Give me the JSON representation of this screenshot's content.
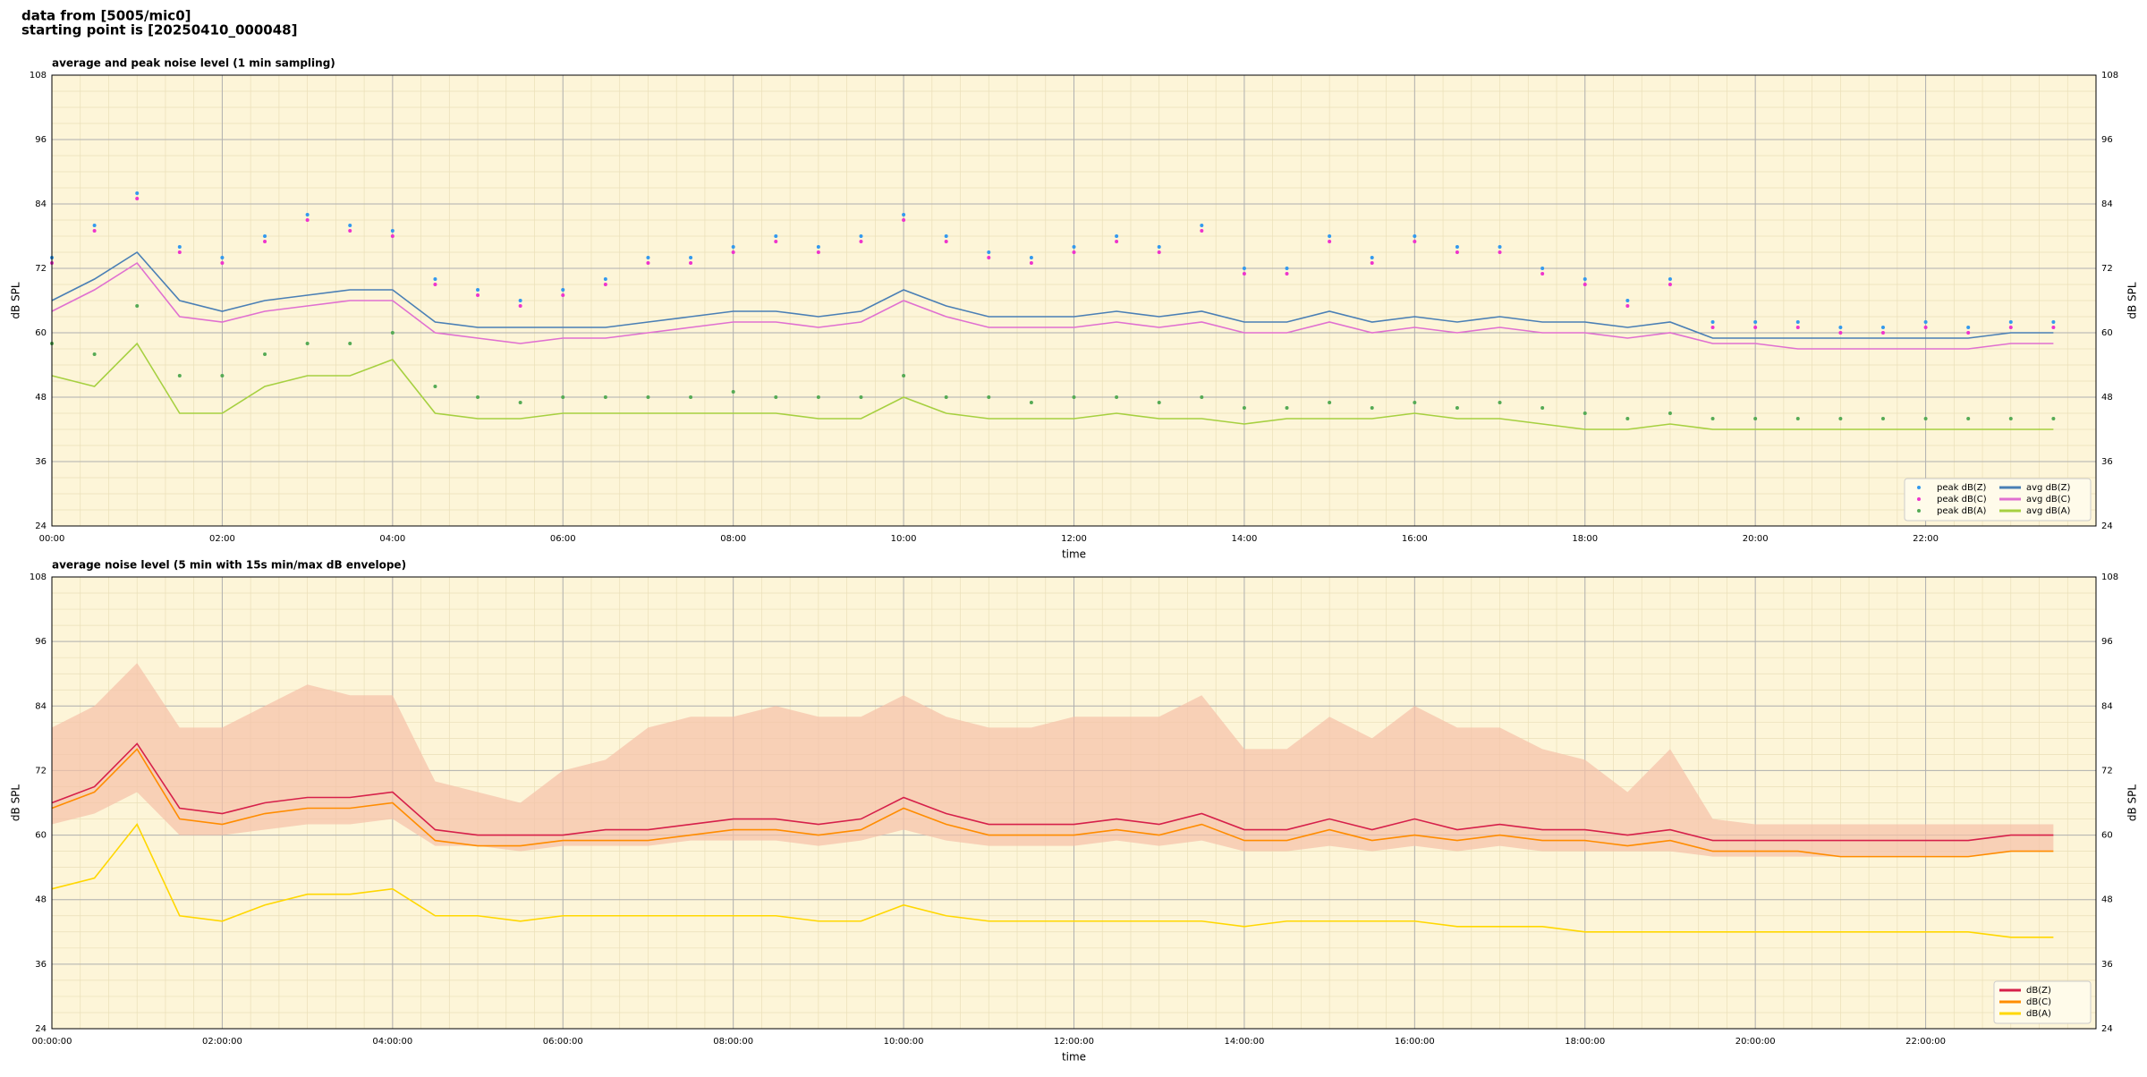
{
  "header": {
    "line1": "data from [5005/mic0]",
    "line2": "starting point is [20250410_000048]"
  },
  "chart_data": [
    {
      "type": "line",
      "title": "average and peak noise level (1 min sampling)",
      "x_label": "time",
      "y_label": "dB SPL",
      "xlim": [
        0,
        24
      ],
      "ylim": [
        24,
        108
      ],
      "grid": true,
      "legend": "lower right",
      "legend_columns": 2,
      "xticks": [
        {
          "value": 0,
          "label": "00:00"
        },
        {
          "value": 2,
          "label": "02:00"
        },
        {
          "value": 4,
          "label": "04:00"
        },
        {
          "value": 6,
          "label": "06:00"
        },
        {
          "value": 8,
          "label": "08:00"
        },
        {
          "value": 10,
          "label": "10:00"
        },
        {
          "value": 12,
          "label": "12:00"
        },
        {
          "value": 14,
          "label": "14:00"
        },
        {
          "value": 16,
          "label": "16:00"
        },
        {
          "value": 18,
          "label": "18:00"
        },
        {
          "value": 20,
          "label": "20:00"
        },
        {
          "value": 22,
          "label": "22:00"
        }
      ],
      "yticks": [
        24,
        36,
        48,
        60,
        72,
        84,
        96,
        108
      ],
      "x": [
        0,
        0.5,
        1,
        1.5,
        2,
        2.5,
        3,
        3.5,
        4,
        4.5,
        5,
        5.5,
        6,
        6.5,
        7,
        7.5,
        8,
        8.5,
        9,
        9.5,
        10,
        10.5,
        11,
        11.5,
        12,
        12.5,
        13,
        13.5,
        14,
        14.5,
        15,
        15.5,
        16,
        16.5,
        17,
        17.5,
        18,
        18.5,
        19,
        19.5,
        20,
        20.5,
        21,
        21.5,
        22,
        22.5,
        23,
        23.5
      ],
      "series": [
        {
          "name": "peak dB(Z)",
          "style": "points",
          "color": "#3399ee",
          "values": [
            74,
            80,
            86,
            76,
            74,
            78,
            82,
            80,
            79,
            70,
            68,
            66,
            68,
            70,
            74,
            74,
            76,
            78,
            76,
            78,
            82,
            78,
            75,
            74,
            76,
            78,
            76,
            80,
            72,
            72,
            78,
            74,
            78,
            76,
            76,
            72,
            70,
            66,
            70,
            62,
            62,
            62,
            61,
            61,
            62,
            61,
            62,
            62
          ]
        },
        {
          "name": "peak dB(C)",
          "style": "points",
          "color": "#ee33cc",
          "values": [
            73,
            79,
            85,
            75,
            73,
            77,
            81,
            79,
            78,
            69,
            67,
            65,
            67,
            69,
            73,
            73,
            75,
            77,
            75,
            77,
            81,
            77,
            74,
            73,
            75,
            77,
            75,
            79,
            71,
            71,
            77,
            73,
            77,
            75,
            75,
            71,
            69,
            65,
            69,
            61,
            61,
            61,
            60,
            60,
            61,
            60,
            61,
            61
          ]
        },
        {
          "name": "peak dB(A)",
          "style": "points",
          "color": "#55aa55",
          "values": [
            58,
            56,
            65,
            52,
            52,
            56,
            58,
            58,
            60,
            50,
            48,
            47,
            48,
            48,
            48,
            48,
            49,
            48,
            48,
            48,
            52,
            48,
            48,
            47,
            48,
            48,
            47,
            48,
            46,
            46,
            47,
            46,
            47,
            46,
            47,
            46,
            45,
            44,
            45,
            44,
            44,
            44,
            44,
            44,
            44,
            44,
            44,
            44
          ]
        },
        {
          "name": "avg dB(Z)",
          "style": "line",
          "color": "#4a7fb5",
          "values": [
            66,
            70,
            75,
            66,
            64,
            66,
            67,
            68,
            68,
            62,
            61,
            61,
            61,
            61,
            62,
            63,
            64,
            64,
            63,
            64,
            68,
            65,
            63,
            63,
            63,
            64,
            63,
            64,
            62,
            62,
            64,
            62,
            63,
            62,
            63,
            62,
            62,
            61,
            62,
            59,
            59,
            59,
            59,
            59,
            59,
            59,
            60,
            60
          ]
        },
        {
          "name": "avg dB(C)",
          "style": "line",
          "color": "#e070d0",
          "values": [
            64,
            68,
            73,
            63,
            62,
            64,
            65,
            66,
            66,
            60,
            59,
            58,
            59,
            59,
            60,
            61,
            62,
            62,
            61,
            62,
            66,
            63,
            61,
            61,
            61,
            62,
            61,
            62,
            60,
            60,
            62,
            60,
            61,
            60,
            61,
            60,
            60,
            59,
            60,
            58,
            58,
            57,
            57,
            57,
            57,
            57,
            58,
            58
          ]
        },
        {
          "name": "avg dB(A)",
          "style": "line",
          "color": "#a6d040",
          "values": [
            52,
            50,
            58,
            45,
            45,
            50,
            52,
            52,
            55,
            45,
            44,
            44,
            45,
            45,
            45,
            45,
            45,
            45,
            44,
            44,
            48,
            45,
            44,
            44,
            44,
            45,
            44,
            44,
            43,
            44,
            44,
            44,
            45,
            44,
            44,
            43,
            42,
            42,
            43,
            42,
            42,
            42,
            42,
            42,
            42,
            42,
            42,
            42
          ]
        }
      ]
    },
    {
      "type": "line",
      "title": "average noise level (5 min with 15s min/max dB envelope)",
      "x_label": "time",
      "y_label": "dB SPL",
      "xlim": [
        0,
        24
      ],
      "ylim": [
        24,
        108
      ],
      "grid": true,
      "legend": "lower right",
      "legend_columns": 1,
      "xticks": [
        {
          "value": 0,
          "label": "00:00:00"
        },
        {
          "value": 2,
          "label": "02:00:00"
        },
        {
          "value": 4,
          "label": "04:00:00"
        },
        {
          "value": 6,
          "label": "06:00:00"
        },
        {
          "value": 8,
          "label": "08:00:00"
        },
        {
          "value": 10,
          "label": "10:00:00"
        },
        {
          "value": 12,
          "label": "12:00:00"
        },
        {
          "value": 14,
          "label": "14:00:00"
        },
        {
          "value": 16,
          "label": "16:00:00"
        },
        {
          "value": 18,
          "label": "18:00:00"
        },
        {
          "value": 20,
          "label": "20:00:00"
        },
        {
          "value": 22,
          "label": "22:00:00"
        }
      ],
      "yticks": [
        24,
        36,
        48,
        60,
        72,
        84,
        96,
        108
      ],
      "x": [
        0,
        0.5,
        1,
        1.5,
        2,
        2.5,
        3,
        3.5,
        4,
        4.5,
        5,
        5.5,
        6,
        6.5,
        7,
        7.5,
        8,
        8.5,
        9,
        9.5,
        10,
        10.5,
        11,
        11.5,
        12,
        12.5,
        13,
        13.5,
        14,
        14.5,
        15,
        15.5,
        16,
        16.5,
        17,
        17.5,
        18,
        18.5,
        19,
        19.5,
        20,
        20.5,
        21,
        21.5,
        22,
        22.5,
        23,
        23.5
      ],
      "band": {
        "color": "#f5c0a8",
        "lower": [
          62,
          64,
          68,
          60,
          60,
          61,
          62,
          62,
          63,
          58,
          58,
          57,
          58,
          58,
          58,
          59,
          59,
          59,
          58,
          59,
          61,
          59,
          58,
          58,
          58,
          59,
          58,
          59,
          57,
          57,
          58,
          57,
          58,
          57,
          58,
          57,
          57,
          57,
          57,
          56,
          56,
          56,
          56,
          56,
          56,
          56,
          57,
          57
        ],
        "upper": [
          80,
          84,
          92,
          80,
          80,
          84,
          88,
          86,
          86,
          70,
          68,
          66,
          72,
          74,
          80,
          82,
          82,
          84,
          82,
          82,
          86,
          82,
          80,
          80,
          82,
          82,
          82,
          86,
          76,
          76,
          82,
          78,
          84,
          80,
          80,
          76,
          74,
          68,
          76,
          63,
          62,
          62,
          62,
          62,
          62,
          62,
          62,
          62
        ]
      },
      "series": [
        {
          "name": "dB(Z)",
          "style": "line",
          "color": "#d6204a",
          "values": [
            66,
            69,
            77,
            65,
            64,
            66,
            67,
            67,
            68,
            61,
            60,
            60,
            60,
            61,
            61,
            62,
            63,
            63,
            62,
            63,
            67,
            64,
            62,
            62,
            62,
            63,
            62,
            64,
            61,
            61,
            63,
            61,
            63,
            61,
            62,
            61,
            61,
            60,
            61,
            59,
            59,
            59,
            59,
            59,
            59,
            59,
            60,
            60
          ]
        },
        {
          "name": "dB(C)",
          "style": "line",
          "color": "#ff8c00",
          "values": [
            65,
            68,
            76,
            63,
            62,
            64,
            65,
            65,
            66,
            59,
            58,
            58,
            59,
            59,
            59,
            60,
            61,
            61,
            60,
            61,
            65,
            62,
            60,
            60,
            60,
            61,
            60,
            62,
            59,
            59,
            61,
            59,
            60,
            59,
            60,
            59,
            59,
            58,
            59,
            57,
            57,
            57,
            56,
            56,
            56,
            56,
            57,
            57
          ]
        },
        {
          "name": "dB(A)",
          "style": "line",
          "color": "#ffd700",
          "values": [
            50,
            52,
            62,
            45,
            44,
            47,
            49,
            49,
            50,
            45,
            45,
            44,
            45,
            45,
            45,
            45,
            45,
            45,
            44,
            44,
            47,
            45,
            44,
            44,
            44,
            44,
            44,
            44,
            43,
            44,
            44,
            44,
            44,
            43,
            43,
            43,
            42,
            42,
            42,
            42,
            42,
            42,
            42,
            42,
            42,
            42,
            41,
            41
          ]
        }
      ]
    }
  ]
}
